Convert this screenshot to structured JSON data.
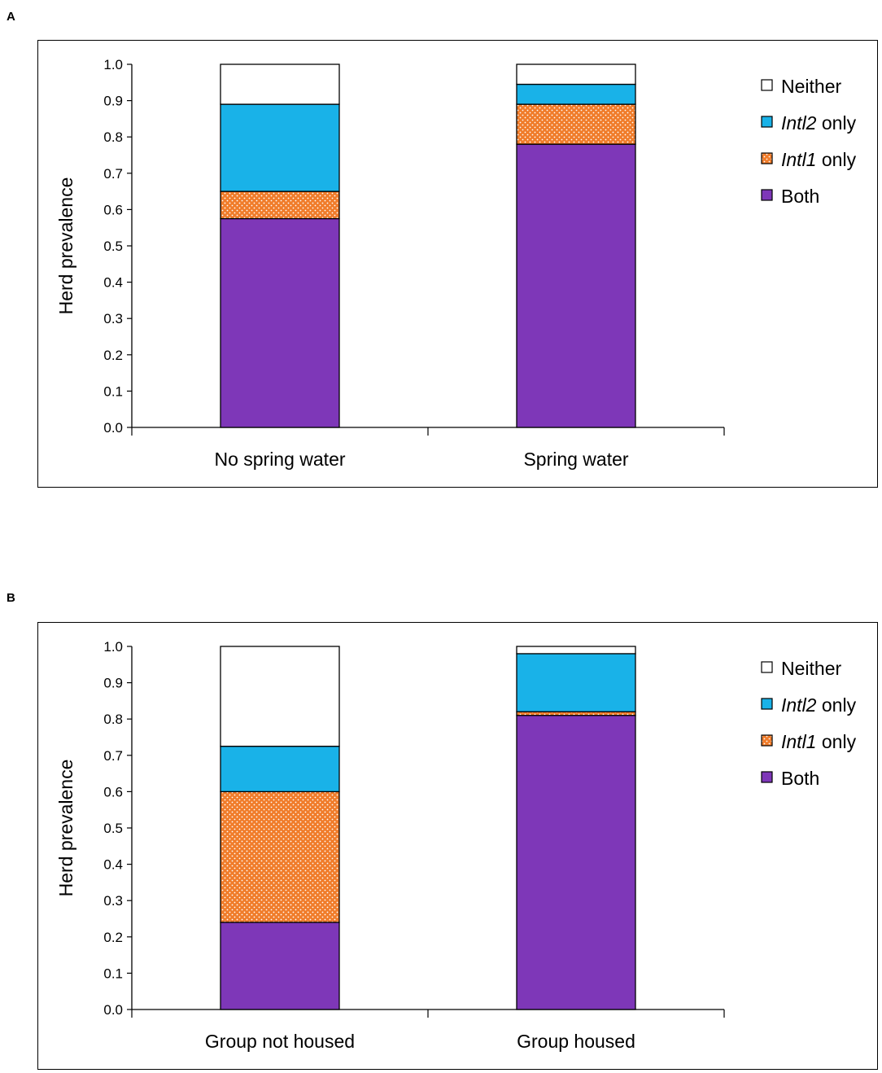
{
  "chart_data": [
    {
      "panel_label": "A",
      "type": "bar",
      "stacked": true,
      "title": "",
      "xlabel": "",
      "ylabel": "Herd prevalence",
      "ylim": [
        0,
        1.0
      ],
      "yticks": [
        "0.0",
        "0.1",
        "0.2",
        "0.3",
        "0.4",
        "0.5",
        "0.6",
        "0.7",
        "0.8",
        "0.9",
        "1.0"
      ],
      "categories": [
        "No spring water",
        "Spring water"
      ],
      "series": [
        {
          "name": "Both",
          "key": "both",
          "color": "#7e37b8",
          "values": [
            0.575,
            0.78
          ]
        },
        {
          "name": "Intl1 only",
          "key": "intl1",
          "color": "#f07c2a",
          "values": [
            0.075,
            0.11
          ]
        },
        {
          "name": "Intl2 only",
          "key": "intl2",
          "color": "#19b2e8",
          "values": [
            0.24,
            0.055
          ]
        },
        {
          "name": "Neither",
          "key": "neither",
          "color": "#ffffff",
          "values": [
            0.11,
            0.055
          ]
        }
      ],
      "legend": [
        {
          "key": "neither",
          "italic": "",
          "text": "Neither"
        },
        {
          "key": "intl2",
          "italic": "Intl2",
          "text": " only"
        },
        {
          "key": "intl1",
          "italic": "Intl1",
          "text": " only"
        },
        {
          "key": "both",
          "italic": "",
          "text": "Both"
        }
      ]
    },
    {
      "panel_label": "B",
      "type": "bar",
      "stacked": true,
      "title": "",
      "xlabel": "",
      "ylabel": "Herd prevalence",
      "ylim": [
        0,
        1.0
      ],
      "yticks": [
        "0.0",
        "0.1",
        "0.2",
        "0.3",
        "0.4",
        "0.5",
        "0.6",
        "0.7",
        "0.8",
        "0.9",
        "1.0"
      ],
      "categories": [
        "Group not housed",
        "Group housed"
      ],
      "series": [
        {
          "name": "Both",
          "key": "both",
          "color": "#7e37b8",
          "values": [
            0.24,
            0.81
          ]
        },
        {
          "name": "Intl1 only",
          "key": "intl1",
          "color": "#f07c2a",
          "values": [
            0.36,
            0.01
          ]
        },
        {
          "name": "Intl2 only",
          "key": "intl2",
          "color": "#19b2e8",
          "values": [
            0.125,
            0.16
          ]
        },
        {
          "name": "Neither",
          "key": "neither",
          "color": "#ffffff",
          "values": [
            0.275,
            0.02
          ]
        }
      ],
      "legend": [
        {
          "key": "neither",
          "italic": "",
          "text": "Neither"
        },
        {
          "key": "intl2",
          "italic": "Intl2",
          "text": " only"
        },
        {
          "key": "intl1",
          "italic": "Intl1",
          "text": " only"
        },
        {
          "key": "both",
          "italic": "",
          "text": "Both"
        }
      ]
    }
  ]
}
